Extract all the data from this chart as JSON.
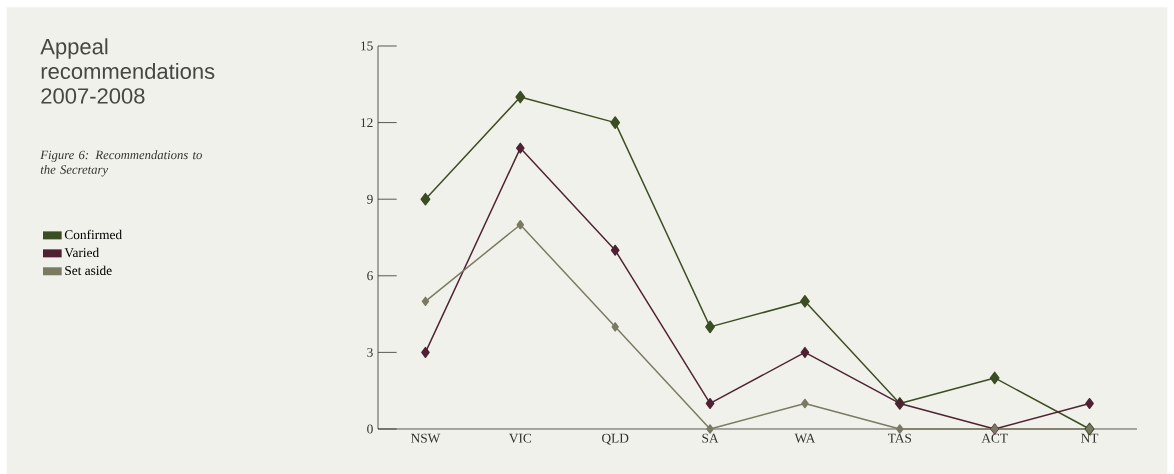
{
  "chart_data": {
    "type": "line",
    "title": "Appeal recommendations 2007-2008",
    "subtitle": "Figure 6: Recommendations to the Secretary",
    "categories": [
      "NSW",
      "VIC",
      "QLD",
      "SA",
      "WA",
      "TAS",
      "ACT",
      "NT"
    ],
    "series": [
      {
        "name": "Confirmed",
        "color": "#3b4d22",
        "values": [
          9,
          13,
          12,
          4,
          5,
          1,
          2,
          0
        ]
      },
      {
        "name": "Varied",
        "color": "#4e2233",
        "values": [
          3,
          11,
          7,
          1,
          3,
          1,
          0,
          1
        ]
      },
      {
        "name": "Set aside",
        "color": "#7a7a62",
        "values": [
          5,
          8,
          4,
          0,
          1,
          0,
          0,
          0
        ]
      }
    ],
    "ylim": [
      0,
      15
    ],
    "yticks": [
      0,
      3,
      6,
      9,
      12,
      15
    ],
    "grid": false,
    "legend": "left",
    "marker": "diamond",
    "line_style": "solid"
  }
}
